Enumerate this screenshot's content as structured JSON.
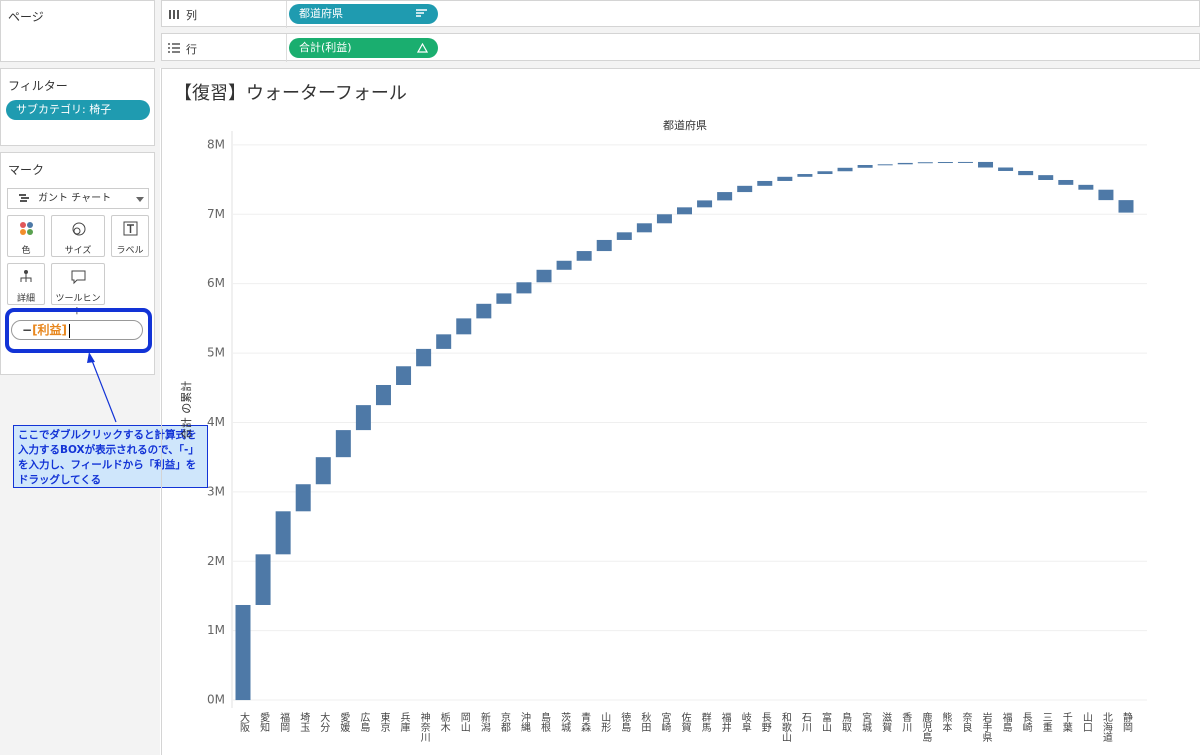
{
  "shelves": {
    "pages_label": "ページ",
    "columns_label": "列",
    "rows_label": "行",
    "columns_pill": "都道府県",
    "rows_pill": "合計(利益)"
  },
  "filters": {
    "title": "フィルター",
    "pill": "サブカテゴリ: 椅子"
  },
  "marks": {
    "title": "マーク",
    "mark_type": "ガント チャート",
    "buttons": [
      "色",
      "サイズ",
      "ラベル",
      "詳細",
      "ツールヒント"
    ],
    "formula_operator": "−",
    "formula_field": "[利益]"
  },
  "annotation": "ここでダブルクリックすると計算式を入力するBOXが表示されるので、「-」を入力し、フィールドから「利益」をドラッグしてくる",
  "chart_data": {
    "type": "waterfall",
    "title": "【復習】ウォーターフォール",
    "x_axis_title": "都道府県",
    "y_axis_title": "合計 の累計",
    "categories": [
      "大阪",
      "愛知",
      "福岡",
      "埼玉",
      "大分",
      "愛媛",
      "広島",
      "東京",
      "兵庫",
      "神奈川",
      "栃木",
      "岡山",
      "新潟",
      "京都",
      "沖縄",
      "島根",
      "茨城",
      "青森",
      "山形",
      "徳島",
      "秋田",
      "宮崎",
      "佐賀",
      "群馬",
      "福井",
      "岐阜",
      "長野",
      "和歌山",
      "石川",
      "富山",
      "鳥取",
      "宮城",
      "滋賀",
      "香川",
      "鹿児島",
      "熊本",
      "奈良",
      "岩手県",
      "福島",
      "長崎",
      "三重",
      "千葉",
      "山口",
      "北海道",
      "静岡"
    ],
    "values": [
      1370000,
      730000,
      620000,
      390000,
      390000,
      390000,
      360000,
      290000,
      270000,
      250000,
      210000,
      230000,
      210000,
      150000,
      160000,
      180000,
      130000,
      140000,
      160000,
      110000,
      130000,
      130000,
      100000,
      100000,
      120000,
      90000,
      70000,
      60000,
      40000,
      40000,
      50000,
      40000,
      10000,
      20000,
      10000,
      3000,
      1000,
      -80000,
      -50000,
      -60000,
      -70000,
      -70000,
      -70000,
      -150000,
      -180000
    ],
    "color": "#4e79a7",
    "ylim": [
      -100000,
      8200000
    ],
    "yticks": [
      {
        "value": 0,
        "label": "0M"
      },
      {
        "value": 1000000,
        "label": "1M"
      },
      {
        "value": 2000000,
        "label": "2M"
      },
      {
        "value": 3000000,
        "label": "3M"
      },
      {
        "value": 4000000,
        "label": "4M"
      },
      {
        "value": 5000000,
        "label": "5M"
      },
      {
        "value": 6000000,
        "label": "6M"
      },
      {
        "value": 7000000,
        "label": "7M"
      },
      {
        "value": 8000000,
        "label": "8M"
      }
    ],
    "grid": true
  }
}
